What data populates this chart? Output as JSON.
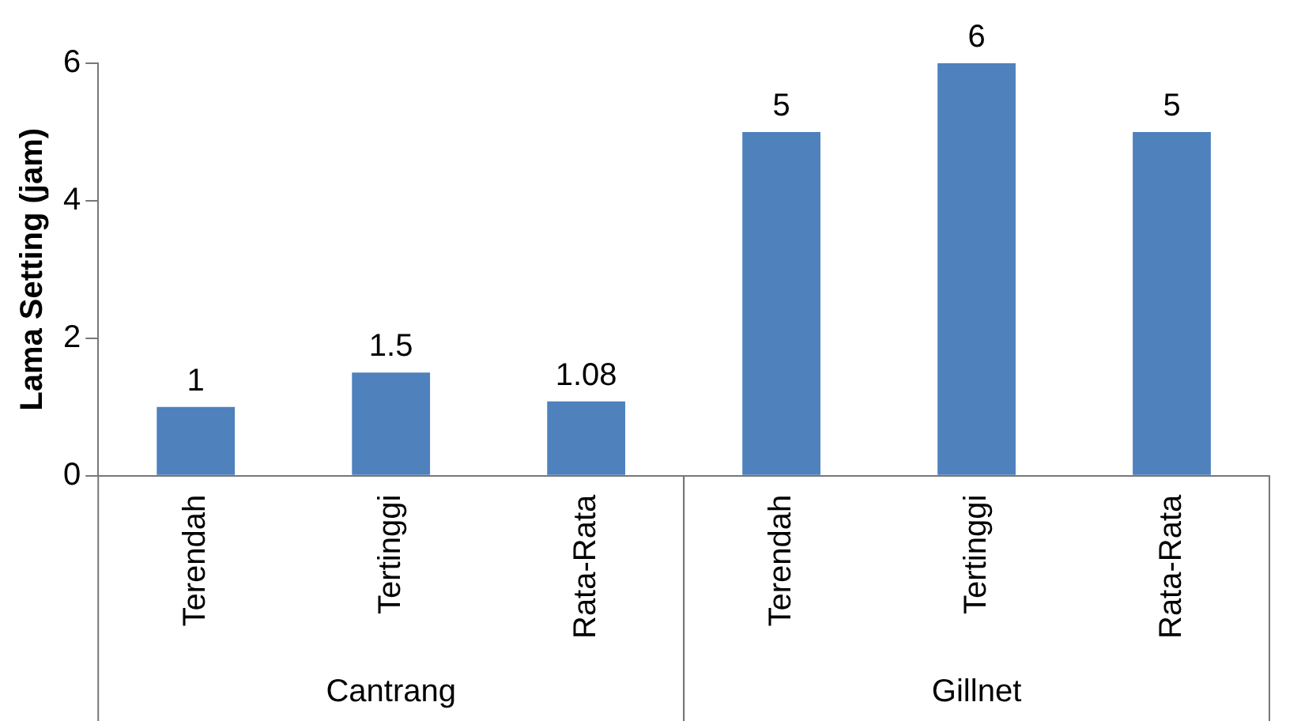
{
  "chart_data": {
    "type": "bar",
    "ylabel": "Lama Setting (jam)",
    "categories": [
      "Terendah",
      "Tertinggi",
      "Rata-Rata",
      "Terendah",
      "Tertinggi",
      "Rata-Rata"
    ],
    "values": [
      1,
      1.5,
      1.08,
      5,
      6,
      5
    ],
    "color": "#4f81bd",
    "ylim": [
      0,
      6
    ],
    "yticks": [
      0,
      2,
      4,
      6
    ],
    "grid": false,
    "legend": false,
    "data_labels": true,
    "annotations": [
      "Cantrang",
      "Gillnet"
    ]
  }
}
